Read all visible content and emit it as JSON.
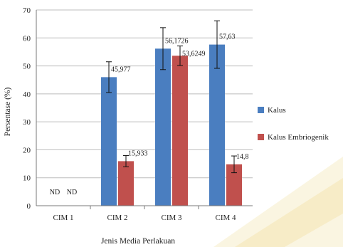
{
  "chart_data": {
    "type": "bar",
    "categories": [
      "CIM 1",
      "CIM 2",
      "CIM 3",
      "CIM 4"
    ],
    "series": [
      {
        "name": "Kalus",
        "color": "#4a7ec0",
        "values": [
          0,
          45.977,
          56.1726,
          57.63
        ],
        "errors": [
          0,
          5.5,
          7.5,
          8.5
        ],
        "labels": [
          "",
          "45,977",
          "56,1726",
          "57,63"
        ]
      },
      {
        "name": "Kalus Embriogenik",
        "color": "#c0504d",
        "values": [
          0,
          15.933,
          53.6249,
          14.8
        ],
        "errors": [
          0,
          2.0,
          3.5,
          3.0
        ],
        "labels": [
          "",
          "15,933",
          "53,6249",
          "14,8"
        ]
      }
    ],
    "no_data_labels": [
      "ND",
      "ND"
    ],
    "xlabel": "Jenis Media Perlakuan",
    "ylabel": "Persentase (%)",
    "ylim": [
      0,
      70
    ],
    "yticks": [
      0,
      10,
      20,
      30,
      40,
      50,
      60,
      70
    ],
    "grid": true,
    "legend_position": "right"
  }
}
